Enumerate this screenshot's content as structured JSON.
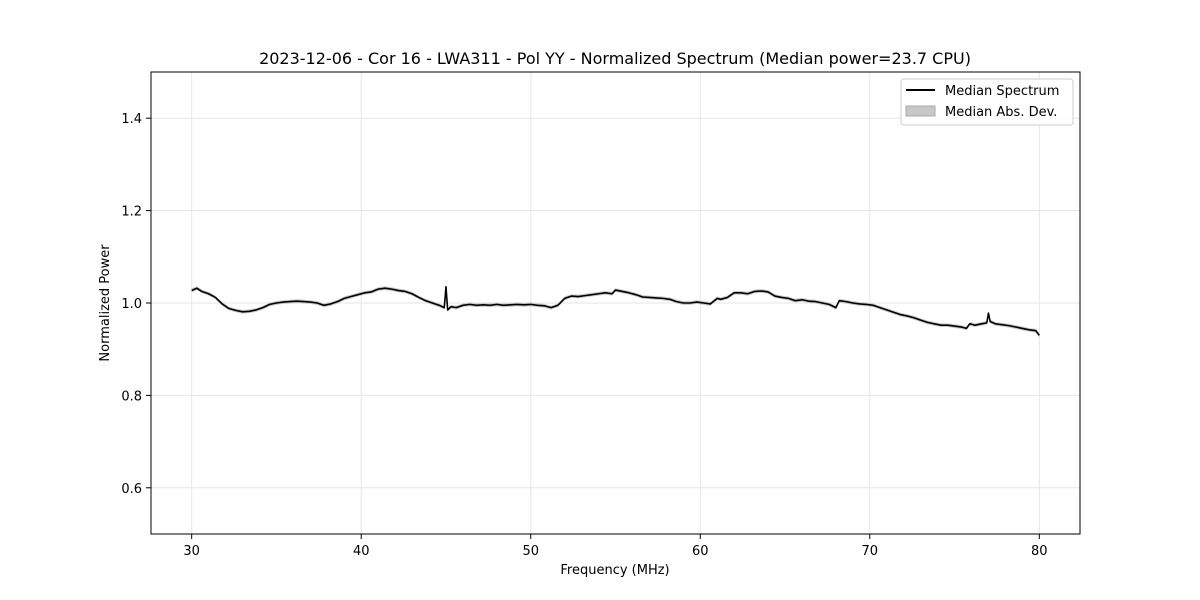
{
  "chart_data": {
    "type": "line",
    "title": "2023-12-06 - Cor 16 - LWA311 - Pol YY - Normalized Spectrum (Median power=23.7 CPU)",
    "xlabel": "Frequency (MHz)",
    "ylabel": "Normalized Power",
    "xlim": [
      27.6,
      82.4
    ],
    "ylim": [
      0.5,
      1.5
    ],
    "grid": true,
    "x_ticks": [
      30,
      40,
      50,
      60,
      70,
      80
    ],
    "x_tick_labels": [
      "30",
      "40",
      "50",
      "60",
      "70",
      "80"
    ],
    "y_ticks": [
      0.6,
      0.8,
      1.0,
      1.2,
      1.4
    ],
    "y_tick_labels": [
      "0.6",
      "0.8",
      "1.0",
      "1.2",
      "1.4"
    ],
    "legend": {
      "position": "top-right",
      "entries": [
        {
          "label": "Median Spectrum",
          "kind": "line",
          "color": "#000000"
        },
        {
          "label": "Median Abs. Dev.",
          "kind": "band",
          "color": "#c8c8c8"
        }
      ]
    },
    "series": [
      {
        "name": "Median Spectrum",
        "color": "#000000",
        "band_color": "#c8c8c8",
        "x": [
          30.0,
          30.3,
          30.6,
          31.0,
          31.4,
          31.8,
          32.2,
          32.6,
          33.0,
          33.4,
          33.8,
          34.2,
          34.6,
          35.0,
          35.4,
          35.8,
          36.2,
          36.6,
          37.0,
          37.4,
          37.8,
          38.2,
          38.6,
          39.0,
          39.4,
          39.8,
          40.2,
          40.6,
          41.0,
          41.4,
          41.8,
          42.2,
          42.6,
          43.0,
          43.4,
          43.8,
          44.2,
          44.6,
          44.9,
          45.0,
          45.1,
          45.3,
          45.6,
          46.0,
          46.4,
          46.8,
          47.2,
          47.6,
          48.0,
          48.4,
          48.8,
          49.2,
          49.6,
          50.0,
          50.4,
          50.8,
          51.2,
          51.6,
          52.0,
          52.4,
          52.8,
          53.2,
          53.6,
          54.0,
          54.4,
          54.8,
          55.0,
          55.4,
          55.8,
          56.2,
          56.6,
          57.0,
          57.4,
          57.8,
          58.2,
          58.6,
          59.0,
          59.4,
          59.8,
          60.2,
          60.6,
          61.0,
          61.2,
          61.6,
          62.0,
          62.4,
          62.8,
          63.2,
          63.6,
          64.0,
          64.4,
          64.8,
          65.2,
          65.6,
          66.0,
          66.4,
          66.8,
          67.2,
          67.6,
          68.0,
          68.2,
          68.6,
          69.0,
          69.4,
          69.8,
          70.2,
          70.6,
          71.0,
          71.4,
          71.8,
          72.2,
          72.6,
          73.0,
          73.4,
          73.8,
          74.2,
          74.6,
          75.0,
          75.4,
          75.7,
          75.9,
          76.2,
          76.6,
          76.9,
          77.0,
          77.1,
          77.4,
          77.8,
          78.2,
          78.6,
          79.0,
          79.4,
          79.8,
          80.0
        ],
        "values": [
          1.027,
          1.032,
          1.025,
          1.02,
          1.012,
          0.998,
          0.988,
          0.984,
          0.981,
          0.982,
          0.985,
          0.99,
          0.997,
          1.0,
          1.002,
          1.003,
          1.004,
          1.003,
          1.002,
          1.0,
          0.995,
          0.998,
          1.003,
          1.01,
          1.014,
          1.018,
          1.022,
          1.024,
          1.03,
          1.032,
          1.03,
          1.027,
          1.025,
          1.02,
          1.012,
          1.005,
          1.0,
          0.995,
          0.99,
          1.035,
          0.985,
          0.992,
          0.99,
          0.995,
          0.997,
          0.995,
          0.996,
          0.995,
          0.997,
          0.995,
          0.996,
          0.997,
          0.996,
          0.997,
          0.995,
          0.994,
          0.99,
          0.995,
          1.01,
          1.015,
          1.014,
          1.016,
          1.018,
          1.02,
          1.022,
          1.02,
          1.028,
          1.025,
          1.022,
          1.018,
          1.013,
          1.012,
          1.011,
          1.01,
          1.008,
          1.003,
          1.0,
          1.0,
          1.002,
          1.0,
          0.998,
          1.01,
          1.008,
          1.012,
          1.022,
          1.022,
          1.02,
          1.025,
          1.026,
          1.024,
          1.015,
          1.012,
          1.01,
          1.005,
          1.007,
          1.004,
          1.003,
          1.0,
          0.997,
          0.99,
          1.005,
          1.003,
          1.0,
          0.998,
          0.997,
          0.995,
          0.99,
          0.985,
          0.98,
          0.975,
          0.972,
          0.968,
          0.963,
          0.958,
          0.955,
          0.952,
          0.952,
          0.95,
          0.948,
          0.945,
          0.955,
          0.952,
          0.955,
          0.957,
          0.978,
          0.96,
          0.955,
          0.953,
          0.951,
          0.948,
          0.945,
          0.942,
          0.94,
          0.93
        ],
        "mad": 0.004
      }
    ]
  }
}
